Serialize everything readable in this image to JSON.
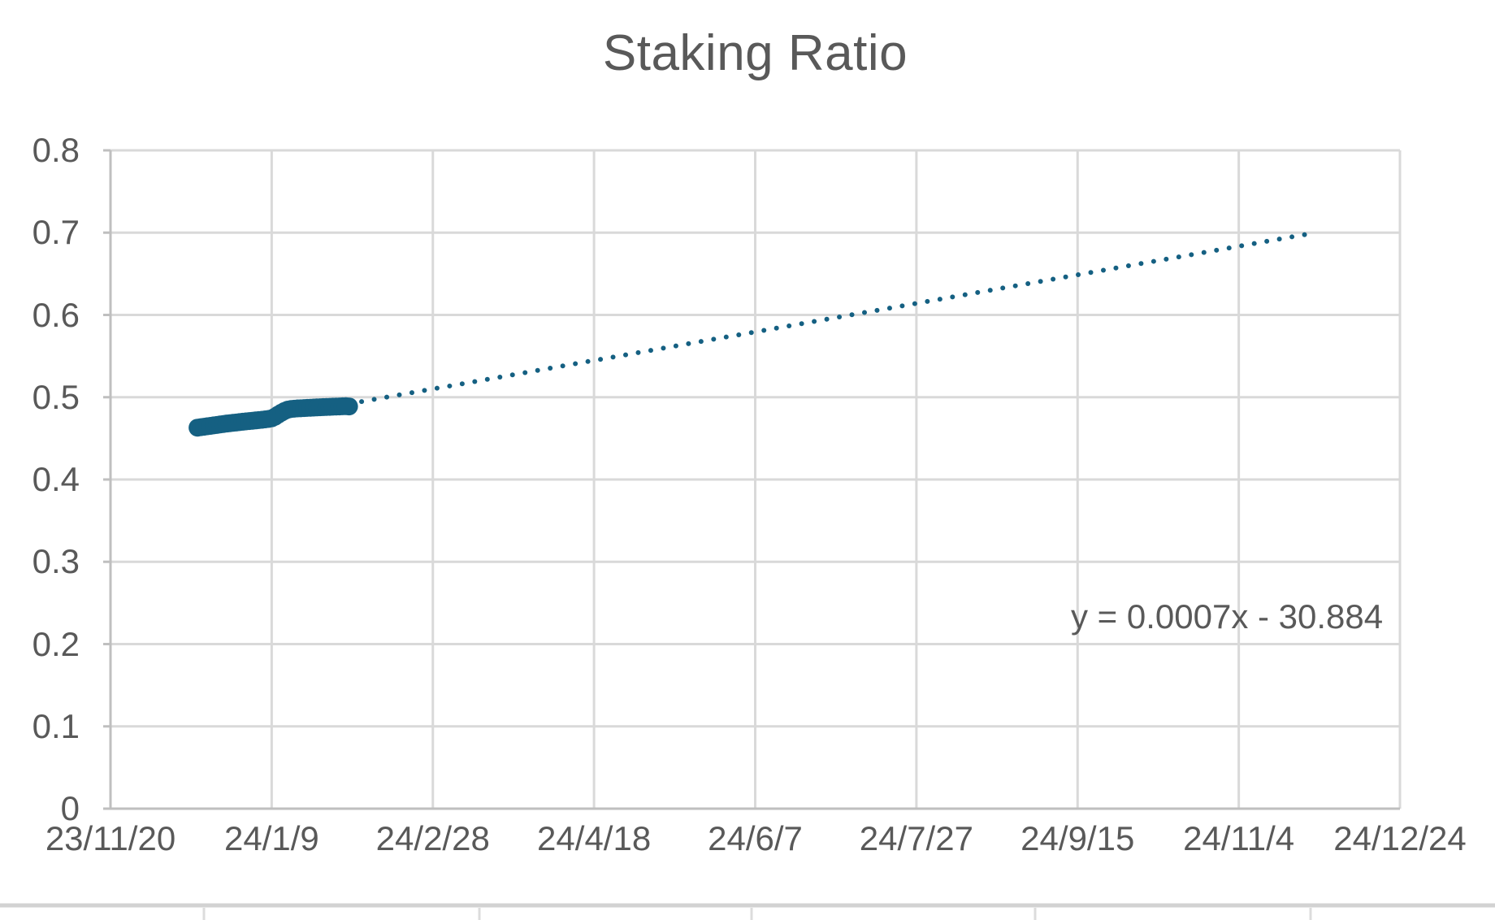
{
  "chart_data": {
    "type": "scatter",
    "title": "Staking Ratio",
    "grid": true,
    "legend": "none",
    "x_axis": {
      "start_date": "2023-11-20",
      "end_date": "2024-12-24",
      "tick_interval_days": 50,
      "tick_labels": [
        "23/11/20",
        "24/1/9",
        "24/2/28",
        "24/4/18",
        "24/6/7",
        "24/7/27",
        "24/9/15",
        "24/11/4",
        "24/12/24"
      ]
    },
    "y_axis": {
      "min": 0,
      "max": 0.8,
      "step": 0.1,
      "tick_labels": [
        "0.8",
        "0.7",
        "0.6",
        "0.5",
        "0.4",
        "0.3",
        "0.2",
        "0.1",
        "0"
      ]
    },
    "series": [
      {
        "name": "Staking Ratio",
        "marker": "filled-circle",
        "color": "#156082",
        "points": [
          {
            "date": "2023-12-17",
            "value": 0.463
          },
          {
            "date": "2023-12-18",
            "value": 0.4636
          },
          {
            "date": "2023-12-19",
            "value": 0.4641
          },
          {
            "date": "2023-12-20",
            "value": 0.4647
          },
          {
            "date": "2023-12-21",
            "value": 0.4652
          },
          {
            "date": "2023-12-22",
            "value": 0.4658
          },
          {
            "date": "2023-12-23",
            "value": 0.4663
          },
          {
            "date": "2023-12-24",
            "value": 0.4669
          },
          {
            "date": "2023-12-25",
            "value": 0.4674
          },
          {
            "date": "2023-12-26",
            "value": 0.468
          },
          {
            "date": "2023-12-27",
            "value": 0.4684
          },
          {
            "date": "2023-12-28",
            "value": 0.4689
          },
          {
            "date": "2023-12-29",
            "value": 0.4693
          },
          {
            "date": "2023-12-30",
            "value": 0.4698
          },
          {
            "date": "2023-12-31",
            "value": 0.4702
          },
          {
            "date": "2024-01-01",
            "value": 0.4706
          },
          {
            "date": "2024-01-02",
            "value": 0.471
          },
          {
            "date": "2024-01-03",
            "value": 0.4714
          },
          {
            "date": "2024-01-04",
            "value": 0.4718
          },
          {
            "date": "2024-01-05",
            "value": 0.4722
          },
          {
            "date": "2024-01-06",
            "value": 0.4726
          },
          {
            "date": "2024-01-07",
            "value": 0.4731
          },
          {
            "date": "2024-01-08",
            "value": 0.4736
          },
          {
            "date": "2024-01-09",
            "value": 0.4744
          },
          {
            "date": "2024-01-10",
            "value": 0.4762
          },
          {
            "date": "2024-01-11",
            "value": 0.4788
          },
          {
            "date": "2024-01-12",
            "value": 0.4812
          },
          {
            "date": "2024-01-13",
            "value": 0.4833
          },
          {
            "date": "2024-01-14",
            "value": 0.4849
          },
          {
            "date": "2024-01-15",
            "value": 0.4857
          },
          {
            "date": "2024-01-16",
            "value": 0.4861
          },
          {
            "date": "2024-01-17",
            "value": 0.4864
          },
          {
            "date": "2024-01-18",
            "value": 0.4866
          },
          {
            "date": "2024-01-19",
            "value": 0.4868
          },
          {
            "date": "2024-01-20",
            "value": 0.487
          },
          {
            "date": "2024-01-21",
            "value": 0.4872
          },
          {
            "date": "2024-01-22",
            "value": 0.4874
          },
          {
            "date": "2024-01-23",
            "value": 0.4876
          },
          {
            "date": "2024-01-24",
            "value": 0.4878
          },
          {
            "date": "2024-01-25",
            "value": 0.488
          },
          {
            "date": "2024-01-26",
            "value": 0.4882
          },
          {
            "date": "2024-01-27",
            "value": 0.4883
          },
          {
            "date": "2024-01-28",
            "value": 0.4885
          },
          {
            "date": "2024-01-29",
            "value": 0.4887
          },
          {
            "date": "2024-01-30",
            "value": 0.4888
          },
          {
            "date": "2024-01-31",
            "value": 0.489
          },
          {
            "date": "2024-02-01",
            "value": 0.4891
          },
          {
            "date": "2024-02-02",
            "value": 0.4888
          }
        ]
      }
    ],
    "trendline": {
      "equation_label": "y = 0.0007x - 30.884",
      "style": "dotted",
      "color": "#156082",
      "start": {
        "date": "2024-02-02",
        "value": 0.492
      },
      "end": {
        "date": "2024-11-25",
        "value": 0.698
      }
    }
  },
  "colors": {
    "background": "#FFFFFF",
    "series": "#156082",
    "gridline": "#D9D9D9",
    "axis_line": "#BFBFBF",
    "text": "#595959",
    "cell_border": "#D2D2D2",
    "cell_border_light": "#DCDCDC"
  }
}
